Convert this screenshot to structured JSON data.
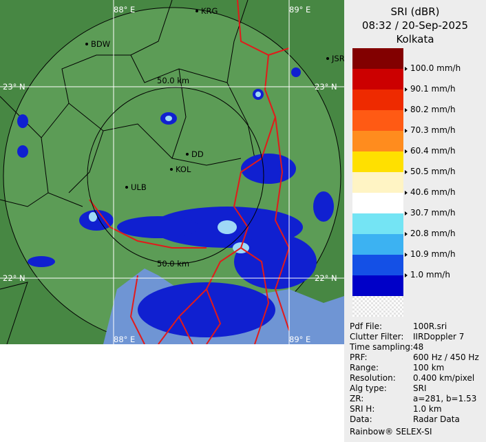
{
  "map": {
    "grid_labels": [
      "88° E",
      "89° E",
      "88° E",
      "89° E",
      "23° N",
      "23° N",
      "22° N",
      "22° N"
    ],
    "cities": [
      "KRG",
      "BDW",
      "JSR",
      "DD",
      "KOL",
      "ULB"
    ],
    "range_labels": [
      "50.0 km",
      "50.0 km"
    ]
  },
  "legend": {
    "title": "SRI (dBR)",
    "time": "08:32 / 20-Sep-2025",
    "site": "Kolkata",
    "levels": [
      {
        "label": "100.0 mm/h",
        "color": "#cc0000"
      },
      {
        "label": "90.1 mm/h",
        "color": "#ee2a00"
      },
      {
        "label": "80.2 mm/h",
        "color": "#ff5a14"
      },
      {
        "label": "70.3 mm/h",
        "color": "#ff8c1e"
      },
      {
        "label": "60.4 mm/h",
        "color": "#ffe000"
      },
      {
        "label": "50.5 mm/h",
        "color": "#fff4c4"
      },
      {
        "label": "40.6 mm/h",
        "color": "#ffffff"
      },
      {
        "label": "30.7 mm/h",
        "color": "#74e4f4"
      },
      {
        "label": "20.8 mm/h",
        "color": "#3cb2f2"
      },
      {
        "label": "10.9 mm/h",
        "color": "#1450e6"
      },
      {
        "label": "1.0 mm/h",
        "color": "#0000c8"
      }
    ]
  },
  "info": {
    "rows": [
      [
        "Pdf File:",
        "100R.sri"
      ],
      [
        "Clutter Filter:",
        "IIRDoppler 7"
      ],
      [
        "Time sampling:",
        "48"
      ],
      [
        "PRF:",
        "600 Hz / 450 Hz"
      ],
      [
        "Range:",
        "100 km"
      ],
      [
        "Resolution:",
        "0.400 km/pixel"
      ],
      [
        "Alg type:",
        "SRI"
      ],
      [
        "ZR:",
        "a=281, b=1.53"
      ],
      [
        "SRI H:",
        "1.0 km"
      ],
      [
        "Data:",
        "Radar Data"
      ]
    ],
    "footer": "Rainbow® SELEX-SI"
  }
}
